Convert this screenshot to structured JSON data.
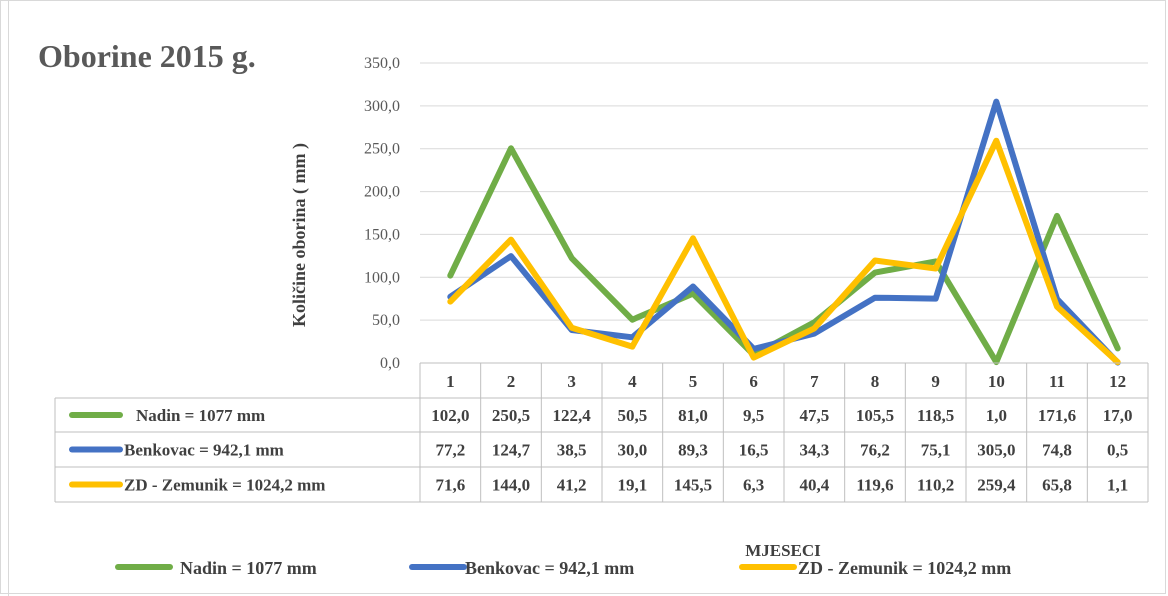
{
  "chart_data": {
    "type": "line",
    "title": "Oborine 2015 g.",
    "ylabel": "Količine oborina ( mm )",
    "xlabel": "MJESECI",
    "categories": [
      "1",
      "2",
      "3",
      "4",
      "5",
      "6",
      "7",
      "8",
      "9",
      "10",
      "11",
      "12"
    ],
    "y_ticks": [
      "0,0",
      "50,0",
      "100,0",
      "150,0",
      "200,0",
      "250,0",
      "300,0",
      "350,0"
    ],
    "ylim": [
      0,
      350
    ],
    "grid": true,
    "legend_position": "bottom",
    "series": [
      {
        "name": "Nadin = 1077 mm",
        "color": "#70ad47",
        "values": [
          102.0,
          250.5,
          122.4,
          50.5,
          81.0,
          9.5,
          47.5,
          105.5,
          118.5,
          1.0,
          171.6,
          17.0
        ],
        "labels": [
          "102,0",
          "250,5",
          "122,4",
          "50,5",
          "81,0",
          "9,5",
          "47,5",
          "105,5",
          "118,5",
          "1,0",
          "171,6",
          "17,0"
        ]
      },
      {
        "name": "Benkovac = 942,1 mm",
        "color": "#4472c4",
        "values": [
          77.2,
          124.7,
          38.5,
          30.0,
          89.3,
          16.5,
          34.3,
          76.2,
          75.1,
          305.0,
          74.8,
          0.5
        ],
        "labels": [
          "77,2",
          "124,7",
          "38,5",
          "30,0",
          "89,3",
          "16,5",
          "34,3",
          "76,2",
          "75,1",
          "305,0",
          "74,8",
          "0,5"
        ]
      },
      {
        "name": "ZD - Zemunik = 1024,2 mm",
        "color": "#ffc000",
        "values": [
          71.6,
          144.0,
          41.2,
          19.1,
          145.5,
          6.3,
          40.4,
          119.6,
          110.2,
          259.4,
          65.8,
          1.1
        ],
        "labels": [
          "71,6",
          "144,0",
          "41,2",
          "19,1",
          "145,5",
          "6,3",
          "40,4",
          "119,6",
          "110,2",
          "259,4",
          "65,8",
          "1,1"
        ]
      }
    ]
  }
}
